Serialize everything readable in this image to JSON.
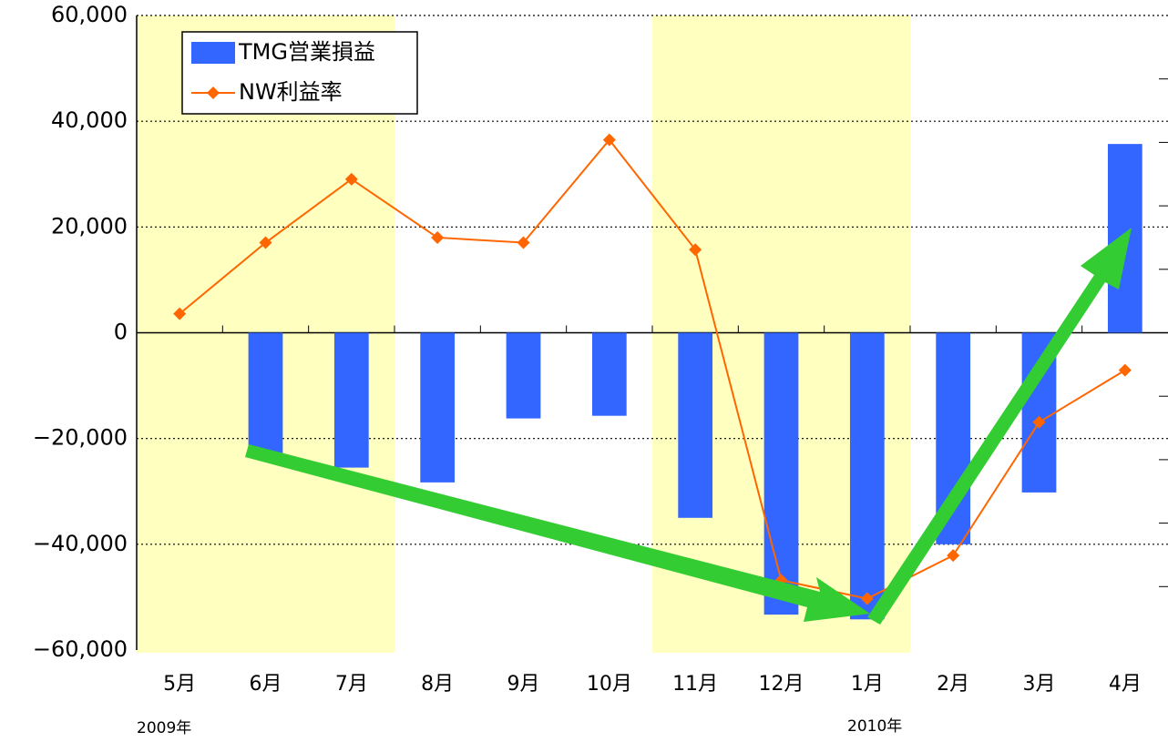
{
  "chart_data": {
    "type": "bar",
    "categories": [
      "5月",
      "6月",
      "7月",
      "8月",
      "9月",
      "10月",
      "11月",
      "12月",
      "1月",
      "2月",
      "3月",
      "4月"
    ],
    "series": [
      {
        "name": "TMG営業損益",
        "type": "bar",
        "color": "#3366ff",
        "values": [
          0,
          -23000,
          -25500,
          -28300,
          -16200,
          -15700,
          -35000,
          -53300,
          -54200,
          -40000,
          -30200,
          35700
        ]
      },
      {
        "name": "NW利益率",
        "type": "line",
        "axis": "y2",
        "color": "#ff6600",
        "values": [
          0.3,
          1.42,
          2.42,
          1.5,
          1.42,
          3.04,
          1.31,
          -3.9,
          -4.19,
          -3.51,
          -1.41,
          -0.59
        ]
      }
    ],
    "ylim": [
      -60000,
      60000
    ],
    "yticks": [
      {
        "value": -60000,
        "label": "−60,000"
      },
      {
        "value": -40000,
        "label": "−40,000"
      },
      {
        "value": -20000,
        "label": "−20,000"
      },
      0,
      {
        "value": 20000,
        "label": "20,000"
      },
      {
        "value": 40000,
        "label": "40,000"
      },
      {
        "value": 60000,
        "label": "60,000"
      }
    ],
    "y2lim": [
      -5,
      5
    ],
    "y2ticks": [
      -4,
      -3,
      -2,
      -1,
      0,
      1,
      2,
      3,
      4
    ],
    "grid": true,
    "legend": "top-left",
    "annotations": [
      "2009年",
      "2010年"
    ]
  }
}
